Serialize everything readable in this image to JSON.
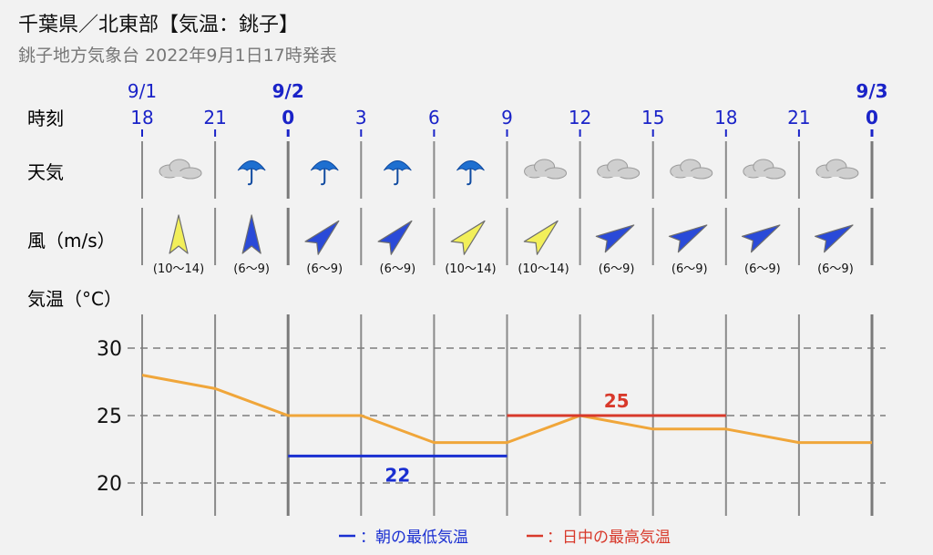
{
  "header": {
    "title": "千葉県／北東部【気温：銚子】",
    "subtitle": "銚子地方気象台 2022年9月1日17時発表"
  },
  "row_labels": {
    "time": "時刻",
    "weather": "天気",
    "wind": "風（m/s）",
    "temperature": "気温（°C）"
  },
  "dates": [
    {
      "label": "9/1",
      "at_index": 0,
      "bold": false
    },
    {
      "label": "9/2",
      "at_index": 2,
      "bold": true
    },
    {
      "label": "9/3",
      "at_index": 10,
      "bold": true
    }
  ],
  "colors": {
    "temperature_line": "#f0a63a",
    "min_line": "#1a2fd1",
    "max_line": "#d8392b",
    "date_text": "#1a23c8",
    "grid": "#8a8a8a",
    "wind_strong": "#f2ef5a",
    "wind_moderate": "#2a4ad8",
    "umbrella": "#1e6fd0",
    "cloud": "#cfcfcf"
  },
  "timeline": [
    {
      "hour": "18",
      "weather": "cloud-icon",
      "wind_dir": "N",
      "wind_range": "(10〜14)",
      "wind_level": "strong"
    },
    {
      "hour": "21",
      "weather": "umbrella-icon",
      "wind_dir": "N",
      "wind_range": "(6〜9)",
      "wind_level": "moderate"
    },
    {
      "hour": "0",
      "weather": "umbrella-icon",
      "wind_dir": "NE",
      "wind_range": "(6〜9)",
      "wind_level": "moderate"
    },
    {
      "hour": "3",
      "weather": "umbrella-icon",
      "wind_dir": "NE",
      "wind_range": "(6〜9)",
      "wind_level": "moderate"
    },
    {
      "hour": "6",
      "weather": "umbrella-icon",
      "wind_dir": "NE",
      "wind_range": "(10〜14)",
      "wind_level": "strong"
    },
    {
      "hour": "9",
      "weather": "cloud-icon",
      "wind_dir": "NE",
      "wind_range": "(10〜14)",
      "wind_level": "strong"
    },
    {
      "hour": "12",
      "weather": "cloud-icon",
      "wind_dir": "ENE",
      "wind_range": "(6〜9)",
      "wind_level": "moderate"
    },
    {
      "hour": "15",
      "weather": "cloud-icon",
      "wind_dir": "ENE",
      "wind_range": "(6〜9)",
      "wind_level": "moderate"
    },
    {
      "hour": "18",
      "weather": "cloud-icon",
      "wind_dir": "ENE",
      "wind_range": "(6〜9)",
      "wind_level": "moderate"
    },
    {
      "hour": "21",
      "weather": "cloud-icon",
      "wind_dir": "ENE",
      "wind_range": "(6〜9)",
      "wind_level": "moderate"
    },
    {
      "hour": "0",
      "weather": null,
      "wind_dir": null,
      "wind_range": null,
      "wind_level": null
    }
  ],
  "chart_data": {
    "type": "line",
    "x": [
      "18",
      "21",
      "0",
      "3",
      "6",
      "9",
      "12",
      "15",
      "18",
      "21",
      "0"
    ],
    "series": [
      {
        "values": [
          28,
          27,
          25,
          25,
          23,
          23,
          25,
          24,
          24,
          23,
          23
        ]
      }
    ],
    "ylim": [
      18,
      33
    ],
    "yticks": [
      20,
      25,
      30
    ],
    "grid": true,
    "min_temp": {
      "value": 22,
      "label": "22",
      "from_index": 2,
      "to_index": 5
    },
    "max_temp": {
      "value": 25,
      "label": "25",
      "from_index": 5,
      "to_index": 8
    }
  },
  "legend": {
    "min_label": "：朝の最低気温",
    "max_label": "：日中の最高気温"
  }
}
